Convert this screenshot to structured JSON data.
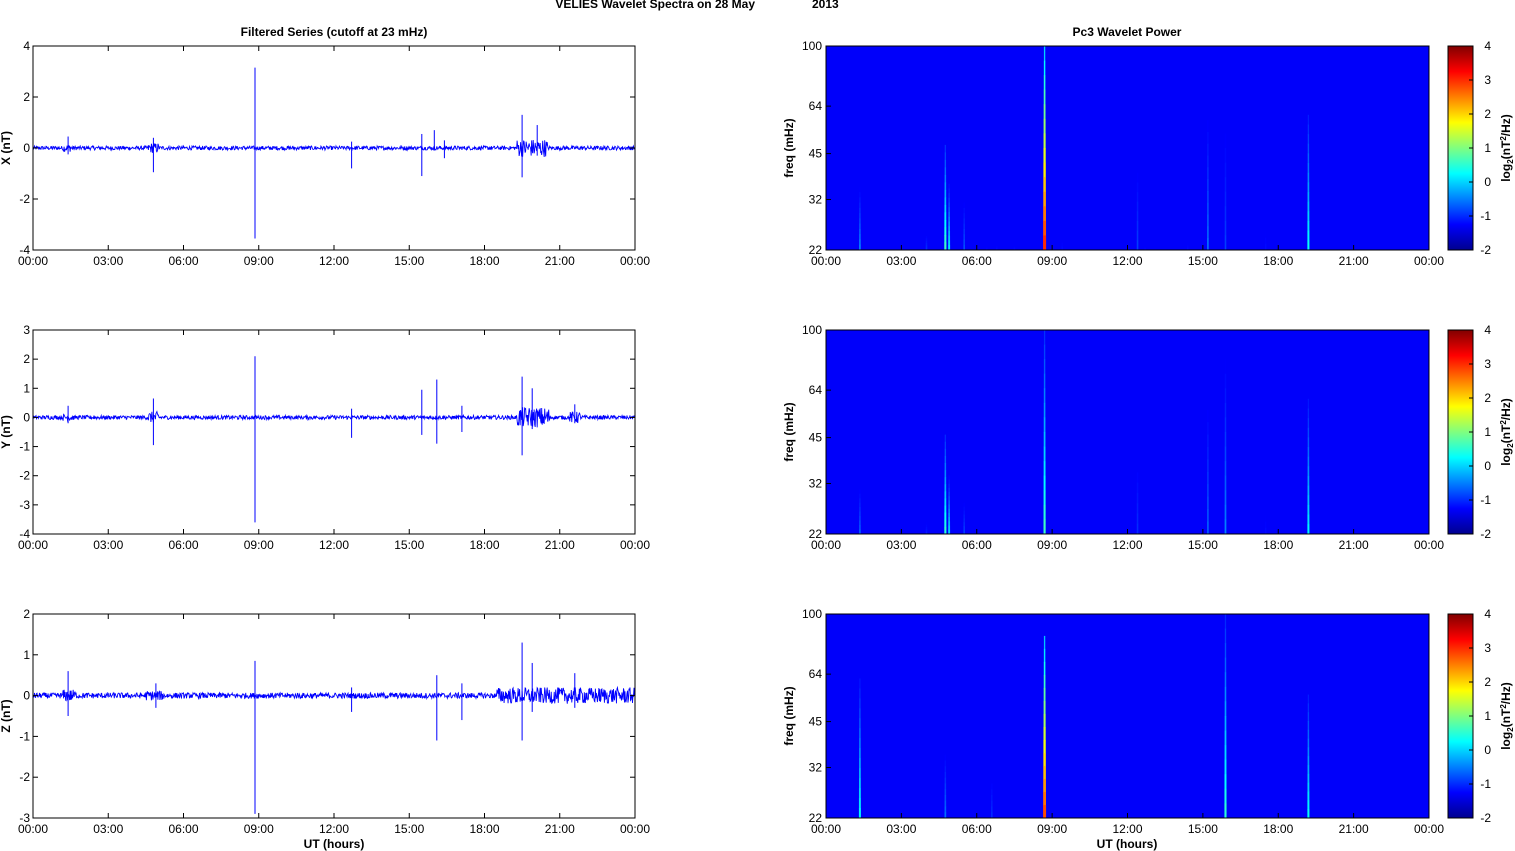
{
  "figure": {
    "title_left": "VELIES Wavelet Spectra on 28 May",
    "title_year": "2013",
    "left_column_title": "Filtered Series (cutoff at 23 mHz)",
    "right_column_title": "Pc3 Wavelet Power",
    "x_axis_label": "UT (hours)",
    "freq_axis_label": "freq (mHz)",
    "colorbar_label_base": "log",
    "colorbar_label_sub": "2",
    "colorbar_label_mid": "(nT",
    "colorbar_label_sup": "2",
    "colorbar_label_end": "/Hz)"
  },
  "chart_data": [
    {
      "type": "line",
      "panel": "X",
      "ylabel": "X (nT)",
      "ylim": [
        -4,
        4
      ],
      "yticks": [
        "4",
        "2",
        "0",
        "-2",
        "-4"
      ],
      "xticks": [
        "00:00",
        "03:00",
        "06:00",
        "09:00",
        "12:00",
        "15:00",
        "18:00",
        "21:00",
        "00:00"
      ],
      "xlim_hours": [
        0,
        24
      ],
      "color": "#0000ff",
      "noise_amplitude": 0.08,
      "spikes": [
        {
          "t": 1.4,
          "up": 0.45,
          "down": -0.25
        },
        {
          "t": 4.8,
          "up": 0.4,
          "down": -0.95
        },
        {
          "t": 8.85,
          "up": 3.15,
          "down": -3.55
        },
        {
          "t": 12.7,
          "up": 0.25,
          "down": -0.8
        },
        {
          "t": 15.5,
          "up": 0.55,
          "down": -1.1
        },
        {
          "t": 16.0,
          "up": 0.7,
          "down": -0.1
        },
        {
          "t": 16.4,
          "up": 0.3,
          "down": -0.4
        },
        {
          "t": 19.5,
          "up": 1.3,
          "down": -1.15
        },
        {
          "t": 20.1,
          "up": 0.9,
          "down": -0.3
        }
      ],
      "active_intervals": [
        [
          1.2,
          1.6,
          0.15
        ],
        [
          4.6,
          5.0,
          0.2
        ],
        [
          19.3,
          20.5,
          0.35
        ]
      ]
    },
    {
      "type": "line",
      "panel": "Y",
      "ylabel": "Y (nT)",
      "ylim": [
        -4,
        3
      ],
      "yticks": [
        "3",
        "2",
        "1",
        "0",
        "-1",
        "-2",
        "-3",
        "-4"
      ],
      "xticks": [
        "00:00",
        "03:00",
        "06:00",
        "09:00",
        "12:00",
        "15:00",
        "18:00",
        "21:00",
        "00:00"
      ],
      "xlim_hours": [
        0,
        24
      ],
      "color": "#0000ff",
      "noise_amplitude": 0.07,
      "spikes": [
        {
          "t": 1.4,
          "up": 0.4,
          "down": -0.2
        },
        {
          "t": 4.8,
          "up": 0.65,
          "down": -0.95
        },
        {
          "t": 8.85,
          "up": 2.1,
          "down": -3.6
        },
        {
          "t": 12.7,
          "up": 0.3,
          "down": -0.7
        },
        {
          "t": 15.5,
          "up": 0.95,
          "down": -0.6
        },
        {
          "t": 16.1,
          "up": 1.3,
          "down": -0.9
        },
        {
          "t": 17.1,
          "up": 0.4,
          "down": -0.5
        },
        {
          "t": 19.5,
          "up": 1.4,
          "down": -1.3
        },
        {
          "t": 19.9,
          "up": 1.0,
          "down": -0.4
        },
        {
          "t": 21.6,
          "up": 0.45,
          "down": -0.2
        }
      ],
      "active_intervals": [
        [
          1.2,
          1.6,
          0.12
        ],
        [
          4.6,
          5.0,
          0.2
        ],
        [
          19.3,
          20.6,
          0.35
        ],
        [
          21.4,
          21.8,
          0.2
        ]
      ]
    },
    {
      "type": "line",
      "panel": "Z",
      "ylabel": "Z (nT)",
      "ylim": [
        -3,
        2
      ],
      "yticks": [
        "2",
        "1",
        "0",
        "-1",
        "-2",
        "-3"
      ],
      "xticks": [
        "00:00",
        "03:00",
        "06:00",
        "09:00",
        "12:00",
        "15:00",
        "18:00",
        "21:00",
        "00:00"
      ],
      "xlim_hours": [
        0,
        24
      ],
      "color": "#0000ff",
      "noise_amplitude": 0.07,
      "spikes": [
        {
          "t": 1.4,
          "up": 0.6,
          "down": -0.5
        },
        {
          "t": 4.9,
          "up": 0.3,
          "down": -0.3
        },
        {
          "t": 8.85,
          "up": 0.85,
          "down": -2.9
        },
        {
          "t": 12.7,
          "up": 0.2,
          "down": -0.4
        },
        {
          "t": 16.1,
          "up": 0.5,
          "down": -1.1
        },
        {
          "t": 17.1,
          "up": 0.3,
          "down": -0.6
        },
        {
          "t": 19.5,
          "up": 1.3,
          "down": -1.1
        },
        {
          "t": 19.9,
          "up": 0.8,
          "down": -0.4
        },
        {
          "t": 21.6,
          "up": 0.55,
          "down": -0.3
        }
      ],
      "active_intervals": [
        [
          1.2,
          1.7,
          0.15
        ],
        [
          4.5,
          5.2,
          0.12
        ],
        [
          18.5,
          24.0,
          0.2
        ]
      ]
    },
    {
      "type": "heatmap",
      "panel": "X power",
      "ylabel": "freq (mHz)",
      "yticks": [
        "100",
        "64",
        "45",
        "32",
        "22"
      ],
      "xticks": [
        "00:00",
        "03:00",
        "06:00",
        "09:00",
        "12:00",
        "15:00",
        "18:00",
        "21:00",
        "00:00"
      ],
      "colorbar": {
        "min": -2,
        "max": 4,
        "ticks": [
          "4",
          "3",
          "2",
          "1",
          "0",
          "-1",
          "-2"
        ]
      },
      "background_value": -2,
      "bursts": [
        {
          "t": 1.35,
          "top_mHz": 38,
          "peak": -0.5
        },
        {
          "t": 4.0,
          "top_mHz": 28,
          "peak": -1.0
        },
        {
          "t": 4.75,
          "top_mHz": 48,
          "peak": 0.6
        },
        {
          "t": 4.9,
          "top_mHz": 36,
          "peak": 0.1
        },
        {
          "t": 5.5,
          "top_mHz": 38,
          "peak": -0.8
        },
        {
          "t": 6.4,
          "top_mHz": 25,
          "peak": -1.2
        },
        {
          "t": 6.8,
          "top_mHz": 27,
          "peak": -1.2
        },
        {
          "t": 7.5,
          "top_mHz": 26,
          "peak": -1.2
        },
        {
          "t": 8.7,
          "top_mHz": 100,
          "peak": 3.0
        },
        {
          "t": 9.4,
          "top_mHz": 32,
          "peak": -1.2
        },
        {
          "t": 10.2,
          "top_mHz": 26,
          "peak": -1.3
        },
        {
          "t": 11.1,
          "top_mHz": 28,
          "peak": -1.3
        },
        {
          "t": 12.4,
          "top_mHz": 60,
          "peak": -0.9
        },
        {
          "t": 12.7,
          "top_mHz": 25,
          "peak": -1.2
        },
        {
          "t": 14.4,
          "top_mHz": 28,
          "peak": -1.2
        },
        {
          "t": 15.2,
          "top_mHz": 75,
          "peak": -0.6
        },
        {
          "t": 15.9,
          "top_mHz": 100,
          "peak": -0.9
        },
        {
          "t": 17.5,
          "top_mHz": 42,
          "peak": -1.2
        },
        {
          "t": 19.2,
          "top_mHz": 60,
          "peak": 0.3
        }
      ]
    },
    {
      "type": "heatmap",
      "panel": "Y power",
      "ylabel": "freq (mHz)",
      "yticks": [
        "100",
        "64",
        "45",
        "32",
        "22"
      ],
      "xticks": [
        "00:00",
        "03:00",
        "06:00",
        "09:00",
        "12:00",
        "15:00",
        "18:00",
        "21:00",
        "00:00"
      ],
      "colorbar": {
        "min": -2,
        "max": 4,
        "ticks": [
          "4",
          "3",
          "2",
          "1",
          "0",
          "-1",
          "-2"
        ]
      },
      "background_value": -2,
      "bursts": [
        {
          "t": 1.35,
          "top_mHz": 35,
          "peak": -0.7
        },
        {
          "t": 4.0,
          "top_mHz": 28,
          "peak": -1.1
        },
        {
          "t": 4.75,
          "top_mHz": 46,
          "peak": 0.5
        },
        {
          "t": 4.9,
          "top_mHz": 34,
          "peak": 0.0
        },
        {
          "t": 5.5,
          "top_mHz": 33,
          "peak": -0.9
        },
        {
          "t": 8.7,
          "top_mHz": 100,
          "peak": 0.6
        },
        {
          "t": 9.4,
          "top_mHz": 26,
          "peak": -1.3
        },
        {
          "t": 12.4,
          "top_mHz": 64,
          "peak": -1.0
        },
        {
          "t": 15.2,
          "top_mHz": 80,
          "peak": -0.7
        },
        {
          "t": 15.9,
          "top_mHz": 100,
          "peak": -0.5
        },
        {
          "t": 17.5,
          "top_mHz": 42,
          "peak": -1.2
        },
        {
          "t": 19.2,
          "top_mHz": 60,
          "peak": 0.2
        }
      ]
    },
    {
      "type": "heatmap",
      "panel": "Z power",
      "ylabel": "freq (mHz)",
      "yticks": [
        "100",
        "64",
        "45",
        "32",
        "22"
      ],
      "xticks": [
        "00:00",
        "03:00",
        "06:00",
        "09:00",
        "12:00",
        "15:00",
        "18:00",
        "21:00",
        "00:00"
      ],
      "colorbar": {
        "min": -2,
        "max": 4,
        "ticks": [
          "4",
          "3",
          "2",
          "1",
          "0",
          "-1",
          "-2"
        ]
      },
      "background_value": -2,
      "bursts": [
        {
          "t": 1.35,
          "top_mHz": 62,
          "peak": 0.2
        },
        {
          "t": 4.75,
          "top_mHz": 40,
          "peak": -0.6
        },
        {
          "t": 6.6,
          "top_mHz": 40,
          "peak": -1.0
        },
        {
          "t": 8.7,
          "top_mHz": 85,
          "peak": 2.8
        },
        {
          "t": 12.4,
          "top_mHz": 30,
          "peak": -1.3
        },
        {
          "t": 15.9,
          "top_mHz": 100,
          "peak": 0.5
        },
        {
          "t": 17.5,
          "top_mHz": 35,
          "peak": -1.3
        },
        {
          "t": 19.2,
          "top_mHz": 55,
          "peak": 0.3
        }
      ]
    }
  ]
}
